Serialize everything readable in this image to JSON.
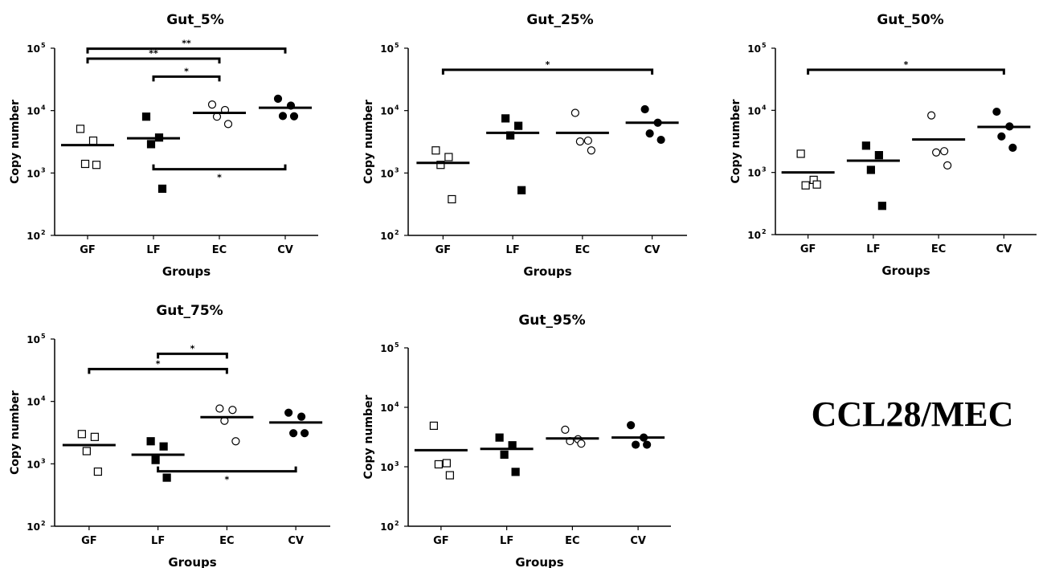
{
  "figure_label": "CCL28/MEC",
  "chart_data": [
    {
      "type": "scatter",
      "title": "Gut_5%",
      "ylabel": "Copy number",
      "xlabel": "Groups",
      "categories": [
        "GF",
        "LF",
        "EC",
        "CV"
      ],
      "yscale": "log",
      "ylim": [
        100,
        100000
      ],
      "yticks": [
        {
          "base": "10",
          "exp": "2"
        },
        {
          "base": "10",
          "exp": "3"
        },
        {
          "base": "10",
          "exp": "4"
        },
        {
          "base": "10",
          "exp": "5"
        }
      ],
      "series": [
        {
          "category": "GF",
          "marker": "open-square",
          "values": [
            5100,
            3300,
            1400,
            1350
          ],
          "mean": 2800
        },
        {
          "category": "LF",
          "marker": "filled-square",
          "values": [
            8000,
            3700,
            2900,
            560
          ],
          "mean": 3600
        },
        {
          "category": "EC",
          "marker": "open-circle",
          "values": [
            12500,
            10200,
            8000,
            6100
          ],
          "mean": 9200
        },
        {
          "category": "CV",
          "marker": "filled-circle",
          "values": [
            15500,
            12000,
            8200,
            8100
          ],
          "mean": 11100
        }
      ],
      "significance": [
        {
          "from": "GF",
          "to": "CV",
          "label": "**",
          "side": "above",
          "y": 98000
        },
        {
          "from": "GF",
          "to": "EC",
          "label": "**",
          "side": "above",
          "y": 68000
        },
        {
          "from": "LF",
          "to": "EC",
          "label": "*",
          "side": "above",
          "y": 35000
        },
        {
          "from": "LF",
          "to": "CV",
          "label": "*",
          "side": "below",
          "y": 1150
        }
      ]
    },
    {
      "type": "scatter",
      "title": "Gut_25%",
      "ylabel": "Copy number",
      "xlabel": "Groups",
      "categories": [
        "GF",
        "LF",
        "EC",
        "CV"
      ],
      "yscale": "log",
      "ylim": [
        100,
        100000
      ],
      "yticks": [
        {
          "base": "10",
          "exp": "2"
        },
        {
          "base": "10",
          "exp": "3"
        },
        {
          "base": "10",
          "exp": "4"
        },
        {
          "base": "10",
          "exp": "5"
        }
      ],
      "series": [
        {
          "category": "GF",
          "marker": "open-square",
          "values": [
            2300,
            1800,
            1350,
            380
          ],
          "mean": 1450
        },
        {
          "category": "LF",
          "marker": "filled-square",
          "values": [
            7500,
            5700,
            4000,
            530
          ],
          "mean": 4400
        },
        {
          "category": "EC",
          "marker": "open-circle",
          "values": [
            9200,
            3300,
            3200,
            2300
          ],
          "mean": 4400
        },
        {
          "category": "CV",
          "marker": "filled-circle",
          "values": [
            10500,
            6400,
            4300,
            3400
          ],
          "mean": 6400
        }
      ],
      "significance": [
        {
          "from": "GF",
          "to": "CV",
          "label": "*",
          "side": "above",
          "y": 45000
        }
      ]
    },
    {
      "type": "scatter",
      "title": "Gut_50%",
      "ylabel": "Copy number",
      "xlabel": "Groups",
      "categories": [
        "GF",
        "LF",
        "EC",
        "CV"
      ],
      "yscale": "log",
      "ylim": [
        100,
        100000
      ],
      "yticks": [
        {
          "base": "10",
          "exp": "2"
        },
        {
          "base": "10",
          "exp": "3"
        },
        {
          "base": "10",
          "exp": "4"
        },
        {
          "base": "10",
          "exp": "5"
        }
      ],
      "series": [
        {
          "category": "GF",
          "marker": "open-square",
          "values": [
            2000,
            760,
            620,
            640
          ],
          "mean": 1000
        },
        {
          "category": "LF",
          "marker": "filled-square",
          "values": [
            2700,
            1900,
            1100,
            290
          ],
          "mean": 1550
        },
        {
          "category": "EC",
          "marker": "open-circle",
          "values": [
            8300,
            2200,
            2100,
            1300
          ],
          "mean": 3400
        },
        {
          "category": "CV",
          "marker": "filled-circle",
          "values": [
            9500,
            5500,
            3800,
            2500
          ],
          "mean": 5400
        }
      ],
      "significance": [
        {
          "from": "GF",
          "to": "CV",
          "label": "*",
          "side": "above",
          "y": 45000
        }
      ]
    },
    {
      "type": "scatter",
      "title": "Gut_75%",
      "ylabel": "Copy number",
      "xlabel": "Groups",
      "categories": [
        "GF",
        "LF",
        "EC",
        "CV"
      ],
      "yscale": "log",
      "ylim": [
        100,
        100000
      ],
      "yticks": [
        {
          "base": "10",
          "exp": "2"
        },
        {
          "base": "10",
          "exp": "3"
        },
        {
          "base": "10",
          "exp": "4"
        },
        {
          "base": "10",
          "exp": "5"
        }
      ],
      "series": [
        {
          "category": "GF",
          "marker": "open-square",
          "values": [
            3000,
            2700,
            1600,
            750
          ],
          "mean": 2000
        },
        {
          "category": "LF",
          "marker": "filled-square",
          "values": [
            2300,
            1900,
            1150,
            600
          ],
          "mean": 1400
        },
        {
          "category": "EC",
          "marker": "open-circle",
          "values": [
            7700,
            7300,
            4900,
            2300
          ],
          "mean": 5600
        },
        {
          "category": "CV",
          "marker": "filled-circle",
          "values": [
            6600,
            5700,
            3100,
            3100
          ],
          "mean": 4600
        }
      ],
      "significance": [
        {
          "from": "LF",
          "to": "EC",
          "label": "*",
          "side": "above",
          "y": 58000
        },
        {
          "from": "GF",
          "to": "EC",
          "label": "*",
          "side": "above",
          "y": 33000
        },
        {
          "from": "LF",
          "to": "CV",
          "label": "*",
          "side": "below",
          "y": 760
        }
      ]
    },
    {
      "type": "scatter",
      "title": "Gut_95%",
      "ylabel": "Copy number",
      "xlabel": "Groups",
      "categories": [
        "GF",
        "LF",
        "EC",
        "CV"
      ],
      "yscale": "log",
      "ylim": [
        100,
        100000
      ],
      "yticks": [
        {
          "base": "10",
          "exp": "2"
        },
        {
          "base": "10",
          "exp": "3"
        },
        {
          "base": "10",
          "exp": "4"
        },
        {
          "base": "10",
          "exp": "5"
        }
      ],
      "series": [
        {
          "category": "GF",
          "marker": "open-square",
          "values": [
            4900,
            1150,
            1100,
            720
          ],
          "mean": 1900
        },
        {
          "category": "LF",
          "marker": "filled-square",
          "values": [
            3100,
            2300,
            1600,
            820
          ],
          "mean": 2000
        },
        {
          "category": "EC",
          "marker": "open-circle",
          "values": [
            4200,
            2900,
            2700,
            2450
          ],
          "mean": 3000
        },
        {
          "category": "CV",
          "marker": "filled-circle",
          "values": [
            5000,
            3100,
            2350,
            2350
          ],
          "mean": 3100
        }
      ],
      "significance": []
    }
  ]
}
